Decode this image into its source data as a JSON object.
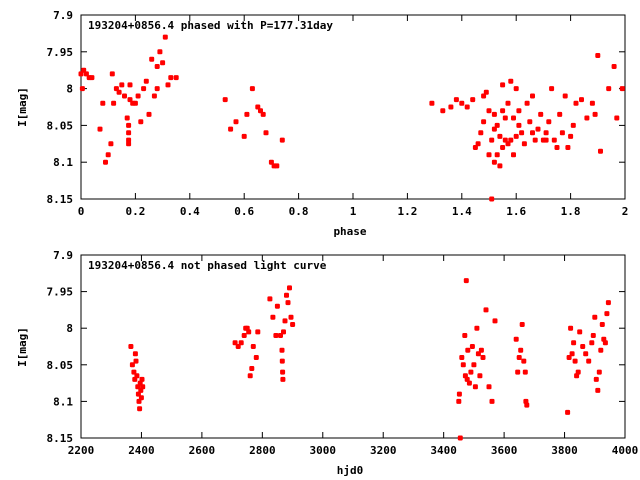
{
  "colors": {
    "points": "#ff0000",
    "axes": "#000000",
    "background": "#ffffff"
  },
  "chart_data": [
    {
      "type": "scatter",
      "title": "193204+0856.4 phased with P=177.31day",
      "xlabel": "phase",
      "ylabel": "I[mag]",
      "xlim": [
        0,
        2
      ],
      "ylim": [
        7.9,
        8.15
      ],
      "y_inverted": true,
      "xticks": [
        "0",
        "0.2",
        "0.4",
        "0.6",
        "0.8",
        "1",
        "1.2",
        "1.4",
        "1.6",
        "1.8",
        "2"
      ],
      "yticks": [
        "7.9",
        "7.95",
        "8",
        "8.05",
        "8.1",
        "8.15"
      ],
      "grid": false,
      "series": [
        {
          "points": [
            [
              0.0,
              7.98
            ],
            [
              0.01,
              7.975
            ],
            [
              0.02,
              7.98
            ],
            [
              0.03,
              7.985
            ],
            [
              0.005,
              8.0
            ],
            [
              0.04,
              7.985
            ],
            [
              0.07,
              8.055
            ],
            [
              0.08,
              8.02
            ],
            [
              0.09,
              8.1
            ],
            [
              0.1,
              8.09
            ],
            [
              0.11,
              8.075
            ],
            [
              0.115,
              7.98
            ],
            [
              0.12,
              8.02
            ],
            [
              0.13,
              8.0
            ],
            [
              0.14,
              8.005
            ],
            [
              0.15,
              7.995
            ],
            [
              0.16,
              8.01
            ],
            [
              0.17,
              8.04
            ],
            [
              0.175,
              8.05
            ],
            [
              0.175,
              8.06
            ],
            [
              0.175,
              8.07
            ],
            [
              0.175,
              8.075
            ],
            [
              0.18,
              7.995
            ],
            [
              0.18,
              8.015
            ],
            [
              0.19,
              8.02
            ],
            [
              0.2,
              8.02
            ],
            [
              0.21,
              8.01
            ],
            [
              0.22,
              8.045
            ],
            [
              0.23,
              8.0
            ],
            [
              0.24,
              7.99
            ],
            [
              0.25,
              8.035
            ],
            [
              0.26,
              7.96
            ],
            [
              0.27,
              8.01
            ],
            [
              0.28,
              8.0
            ],
            [
              0.28,
              7.97
            ],
            [
              0.29,
              7.95
            ],
            [
              0.3,
              7.965
            ],
            [
              0.31,
              7.93
            ],
            [
              0.32,
              7.995
            ],
            [
              0.33,
              7.985
            ],
            [
              0.35,
              7.985
            ],
            [
              0.53,
              8.015
            ],
            [
              0.55,
              8.055
            ],
            [
              0.57,
              8.045
            ],
            [
              0.6,
              8.065
            ],
            [
              0.61,
              8.035
            ],
            [
              0.63,
              8.0
            ],
            [
              0.65,
              8.025
            ],
            [
              0.66,
              8.03
            ],
            [
              0.67,
              8.035
            ],
            [
              0.68,
              8.06
            ],
            [
              0.7,
              8.1
            ],
            [
              0.71,
              8.105
            ],
            [
              0.72,
              8.105
            ],
            [
              0.74,
              8.07
            ],
            [
              1.29,
              8.02
            ],
            [
              1.33,
              8.03
            ],
            [
              1.36,
              8.025
            ],
            [
              1.38,
              8.015
            ],
            [
              1.4,
              8.02
            ],
            [
              1.42,
              8.025
            ],
            [
              1.44,
              8.015
            ],
            [
              1.45,
              8.08
            ],
            [
              1.46,
              8.075
            ],
            [
              1.47,
              8.06
            ],
            [
              1.48,
              8.01
            ],
            [
              1.49,
              8.005
            ],
            [
              1.5,
              8.03
            ],
            [
              1.5,
              8.09
            ],
            [
              1.51,
              8.15
            ],
            [
              1.52,
              8.035
            ],
            [
              1.52,
              8.1
            ],
            [
              1.53,
              8.05
            ],
            [
              1.53,
              8.09
            ],
            [
              1.54,
              8.065
            ],
            [
              1.54,
              8.105
            ],
            [
              1.55,
              7.995
            ],
            [
              1.55,
              8.03
            ],
            [
              1.55,
              8.08
            ],
            [
              1.56,
              8.04
            ],
            [
              1.56,
              8.07
            ],
            [
              1.57,
              8.02
            ],
            [
              1.57,
              8.075
            ],
            [
              1.58,
              8.07
            ],
            [
              1.58,
              7.99
            ],
            [
              1.59,
              8.04
            ],
            [
              1.59,
              8.09
            ],
            [
              1.6,
              8.0
            ],
            [
              1.6,
              8.065
            ],
            [
              1.61,
              8.03
            ],
            [
              1.62,
              8.06
            ],
            [
              1.63,
              8.075
            ],
            [
              1.64,
              8.02
            ],
            [
              1.65,
              8.045
            ],
            [
              1.66,
              8.01
            ],
            [
              1.67,
              8.07
            ],
            [
              1.68,
              8.055
            ],
            [
              1.69,
              8.035
            ],
            [
              1.7,
              8.07
            ],
            [
              1.71,
              8.06
            ],
            [
              1.72,
              8.045
            ],
            [
              1.73,
              8.0
            ],
            [
              1.74,
              8.07
            ],
            [
              1.75,
              8.08
            ],
            [
              1.76,
              8.035
            ],
            [
              1.77,
              8.06
            ],
            [
              1.78,
              8.01
            ],
            [
              1.79,
              8.08
            ],
            [
              1.8,
              8.065
            ],
            [
              1.81,
              8.05
            ],
            [
              1.82,
              8.02
            ],
            [
              1.84,
              8.015
            ],
            [
              1.86,
              8.04
            ],
            [
              1.88,
              8.02
            ],
            [
              1.89,
              8.035
            ],
            [
              1.9,
              7.955
            ],
            [
              1.91,
              8.085
            ],
            [
              1.94,
              8.0
            ],
            [
              1.96,
              7.97
            ],
            [
              1.97,
              8.04
            ],
            [
              1.99,
              8.0
            ],
            [
              1.48,
              8.045
            ],
            [
              1.52,
              8.055
            ],
            [
              1.61,
              8.05
            ],
            [
              1.66,
              8.06
            ],
            [
              1.71,
              8.07
            ],
            [
              1.51,
              8.07
            ]
          ]
        }
      ]
    },
    {
      "type": "scatter",
      "title": "193204+0856.4 not phased light curve",
      "xlabel": "hjd0",
      "ylabel": "I[mag]",
      "xlim": [
        2200,
        4000
      ],
      "ylim": [
        7.9,
        8.15
      ],
      "y_inverted": true,
      "xticks": [
        "2200",
        "2400",
        "2600",
        "2800",
        "3000",
        "3200",
        "3400",
        "3600",
        "3800",
        "4000"
      ],
      "yticks": [
        "7.9",
        "7.95",
        "8",
        "8.05",
        "8.1",
        "8.15"
      ],
      "grid": false,
      "series": [
        {
          "points": [
            [
              2365,
              8.025
            ],
            [
              2370,
              8.05
            ],
            [
              2375,
              8.06
            ],
            [
              2378,
              8.07
            ],
            [
              2380,
              8.035
            ],
            [
              2382,
              8.045
            ],
            [
              2385,
              8.065
            ],
            [
              2388,
              8.08
            ],
            [
              2390,
              8.09
            ],
            [
              2392,
              8.1
            ],
            [
              2394,
              8.11
            ],
            [
              2396,
              8.075
            ],
            [
              2398,
              8.085
            ],
            [
              2400,
              8.095
            ],
            [
              2402,
              8.07
            ],
            [
              2404,
              8.08
            ],
            [
              2710,
              8.02
            ],
            [
              2720,
              8.025
            ],
            [
              2730,
              8.02
            ],
            [
              2740,
              8.01
            ],
            [
              2745,
              8.0
            ],
            [
              2750,
              8.0
            ],
            [
              2755,
              8.005
            ],
            [
              2760,
              8.065
            ],
            [
              2765,
              8.055
            ],
            [
              2770,
              8.025
            ],
            [
              2780,
              8.04
            ],
            [
              2785,
              8.005
            ],
            [
              2825,
              7.96
            ],
            [
              2835,
              7.985
            ],
            [
              2845,
              8.01
            ],
            [
              2850,
              7.97
            ],
            [
              2860,
              8.01
            ],
            [
              2865,
              8.03
            ],
            [
              2866,
              8.045
            ],
            [
              2867,
              8.06
            ],
            [
              2868,
              8.07
            ],
            [
              2870,
              8.005
            ],
            [
              2875,
              7.99
            ],
            [
              2880,
              7.955
            ],
            [
              2885,
              7.965
            ],
            [
              2890,
              7.945
            ],
            [
              2895,
              7.985
            ],
            [
              2900,
              7.995
            ],
            [
              3450,
              8.1
            ],
            [
              3452,
              8.09
            ],
            [
              3455,
              8.15
            ],
            [
              3460,
              8.04
            ],
            [
              3465,
              8.05
            ],
            [
              3470,
              8.01
            ],
            [
              3472,
              8.065
            ],
            [
              3475,
              7.935
            ],
            [
              3478,
              8.07
            ],
            [
              3480,
              8.03
            ],
            [
              3485,
              8.075
            ],
            [
              3490,
              8.06
            ],
            [
              3495,
              8.025
            ],
            [
              3500,
              8.05
            ],
            [
              3505,
              8.08
            ],
            [
              3510,
              8.0
            ],
            [
              3515,
              8.035
            ],
            [
              3520,
              8.065
            ],
            [
              3525,
              8.03
            ],
            [
              3530,
              8.04
            ],
            [
              3540,
              7.975
            ],
            [
              3550,
              8.08
            ],
            [
              3560,
              8.1
            ],
            [
              3570,
              7.99
            ],
            [
              3640,
              8.015
            ],
            [
              3645,
              8.06
            ],
            [
              3650,
              8.04
            ],
            [
              3655,
              8.03
            ],
            [
              3660,
              7.995
            ],
            [
              3665,
              8.045
            ],
            [
              3670,
              8.06
            ],
            [
              3672,
              8.1
            ],
            [
              3675,
              8.105
            ],
            [
              3810,
              8.115
            ],
            [
              3815,
              8.04
            ],
            [
              3820,
              8.0
            ],
            [
              3825,
              8.035
            ],
            [
              3830,
              8.02
            ],
            [
              3835,
              8.045
            ],
            [
              3840,
              8.065
            ],
            [
              3845,
              8.06
            ],
            [
              3850,
              8.005
            ],
            [
              3860,
              8.025
            ],
            [
              3870,
              8.035
            ],
            [
              3880,
              8.045
            ],
            [
              3890,
              8.02
            ],
            [
              3895,
              8.01
            ],
            [
              3900,
              7.985
            ],
            [
              3905,
              8.07
            ],
            [
              3910,
              8.085
            ],
            [
              3915,
              8.06
            ],
            [
              3920,
              8.03
            ],
            [
              3925,
              7.995
            ],
            [
              3930,
              8.015
            ],
            [
              3935,
              8.02
            ],
            [
              3940,
              7.98
            ],
            [
              3945,
              7.965
            ]
          ]
        }
      ]
    }
  ]
}
